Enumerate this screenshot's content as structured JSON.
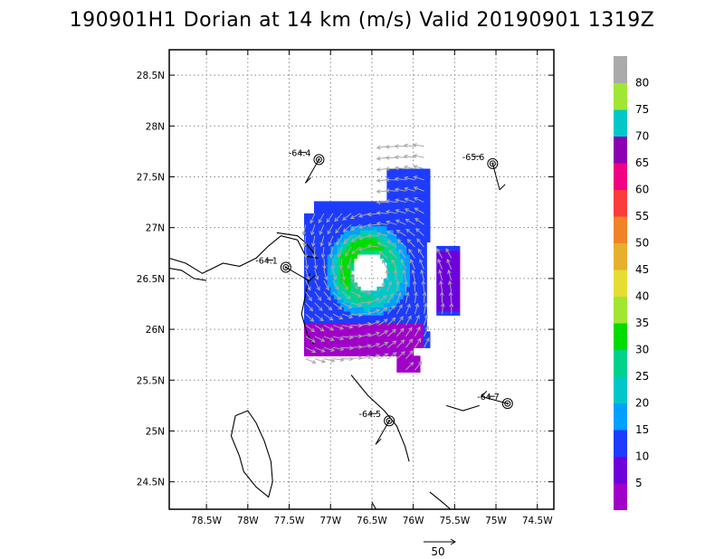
{
  "title": "190901H1 Dorian at 14 km (m/s) Valid 20190901  1319Z",
  "chart_data": {
    "type": "heatmap",
    "title": "190901H1 Dorian at 14 km (m/s) Valid 20190901  1319Z",
    "storm": "Dorian",
    "flight": "190901H1",
    "altitude_km": 14,
    "units": "m/s",
    "valid_time": "20190901 1319Z",
    "xlim": [
      -78.95,
      -74.3
    ],
    "ylim": [
      24.23,
      28.75
    ],
    "grid": true,
    "x_ticks": [
      {
        "value": -78.5,
        "label": "78.5W"
      },
      {
        "value": -78.0,
        "label": "78W"
      },
      {
        "value": -77.5,
        "label": "77.5W"
      },
      {
        "value": -77.0,
        "label": "77W"
      },
      {
        "value": -76.5,
        "label": "76.5W"
      },
      {
        "value": -76.0,
        "label": "76W"
      },
      {
        "value": -75.5,
        "label": "75.5W"
      },
      {
        "value": -75.0,
        "label": "75W"
      },
      {
        "value": -74.5,
        "label": "74.5W"
      }
    ],
    "y_ticks": [
      {
        "value": 24.5,
        "label": "24.5N"
      },
      {
        "value": 25.0,
        "label": "25N"
      },
      {
        "value": 25.5,
        "label": "25.5N"
      },
      {
        "value": 26.0,
        "label": "26N"
      },
      {
        "value": 26.5,
        "label": "26.5N"
      },
      {
        "value": 27.0,
        "label": "27N"
      },
      {
        "value": 27.5,
        "label": "27.5N"
      },
      {
        "value": 28.0,
        "label": "28N"
      },
      {
        "value": 28.5,
        "label": "28.5N"
      }
    ],
    "colorbar": {
      "labels": [
        "5",
        "10",
        "15",
        "20",
        "25",
        "30",
        "35",
        "40",
        "45",
        "50",
        "55",
        "60",
        "65",
        "70",
        "75",
        "80"
      ],
      "colors": [
        "#a000c8",
        "#6e00dc",
        "#1e3cff",
        "#00a0ff",
        "#00c8c8",
        "#00d28c",
        "#00dc00",
        "#a0e632",
        "#e6dc32",
        "#e6af2d",
        "#f08228",
        "#fa3c3c",
        "#f00082",
        "#8c00b4",
        "#00c8c8",
        "#a0e632",
        "#aaaaaa"
      ]
    },
    "stations": [
      {
        "lon": -77.14,
        "lat": 27.67,
        "label": "-64.4",
        "barb_dir": 330
      },
      {
        "lon": -75.04,
        "lat": 27.63,
        "label": "-65.6",
        "barb_dir": 15
      },
      {
        "lon": -77.54,
        "lat": 26.61,
        "label": "-64.1",
        "barb_dir": 60
      },
      {
        "lon": -76.29,
        "lat": 25.1,
        "label": "-64.5",
        "barb_dir": 330
      },
      {
        "lon": -74.86,
        "lat": 25.27,
        "label": "-64.7",
        "barb_dir": 255
      }
    ],
    "reference_vector": {
      "value": 50,
      "label": "50"
    }
  }
}
